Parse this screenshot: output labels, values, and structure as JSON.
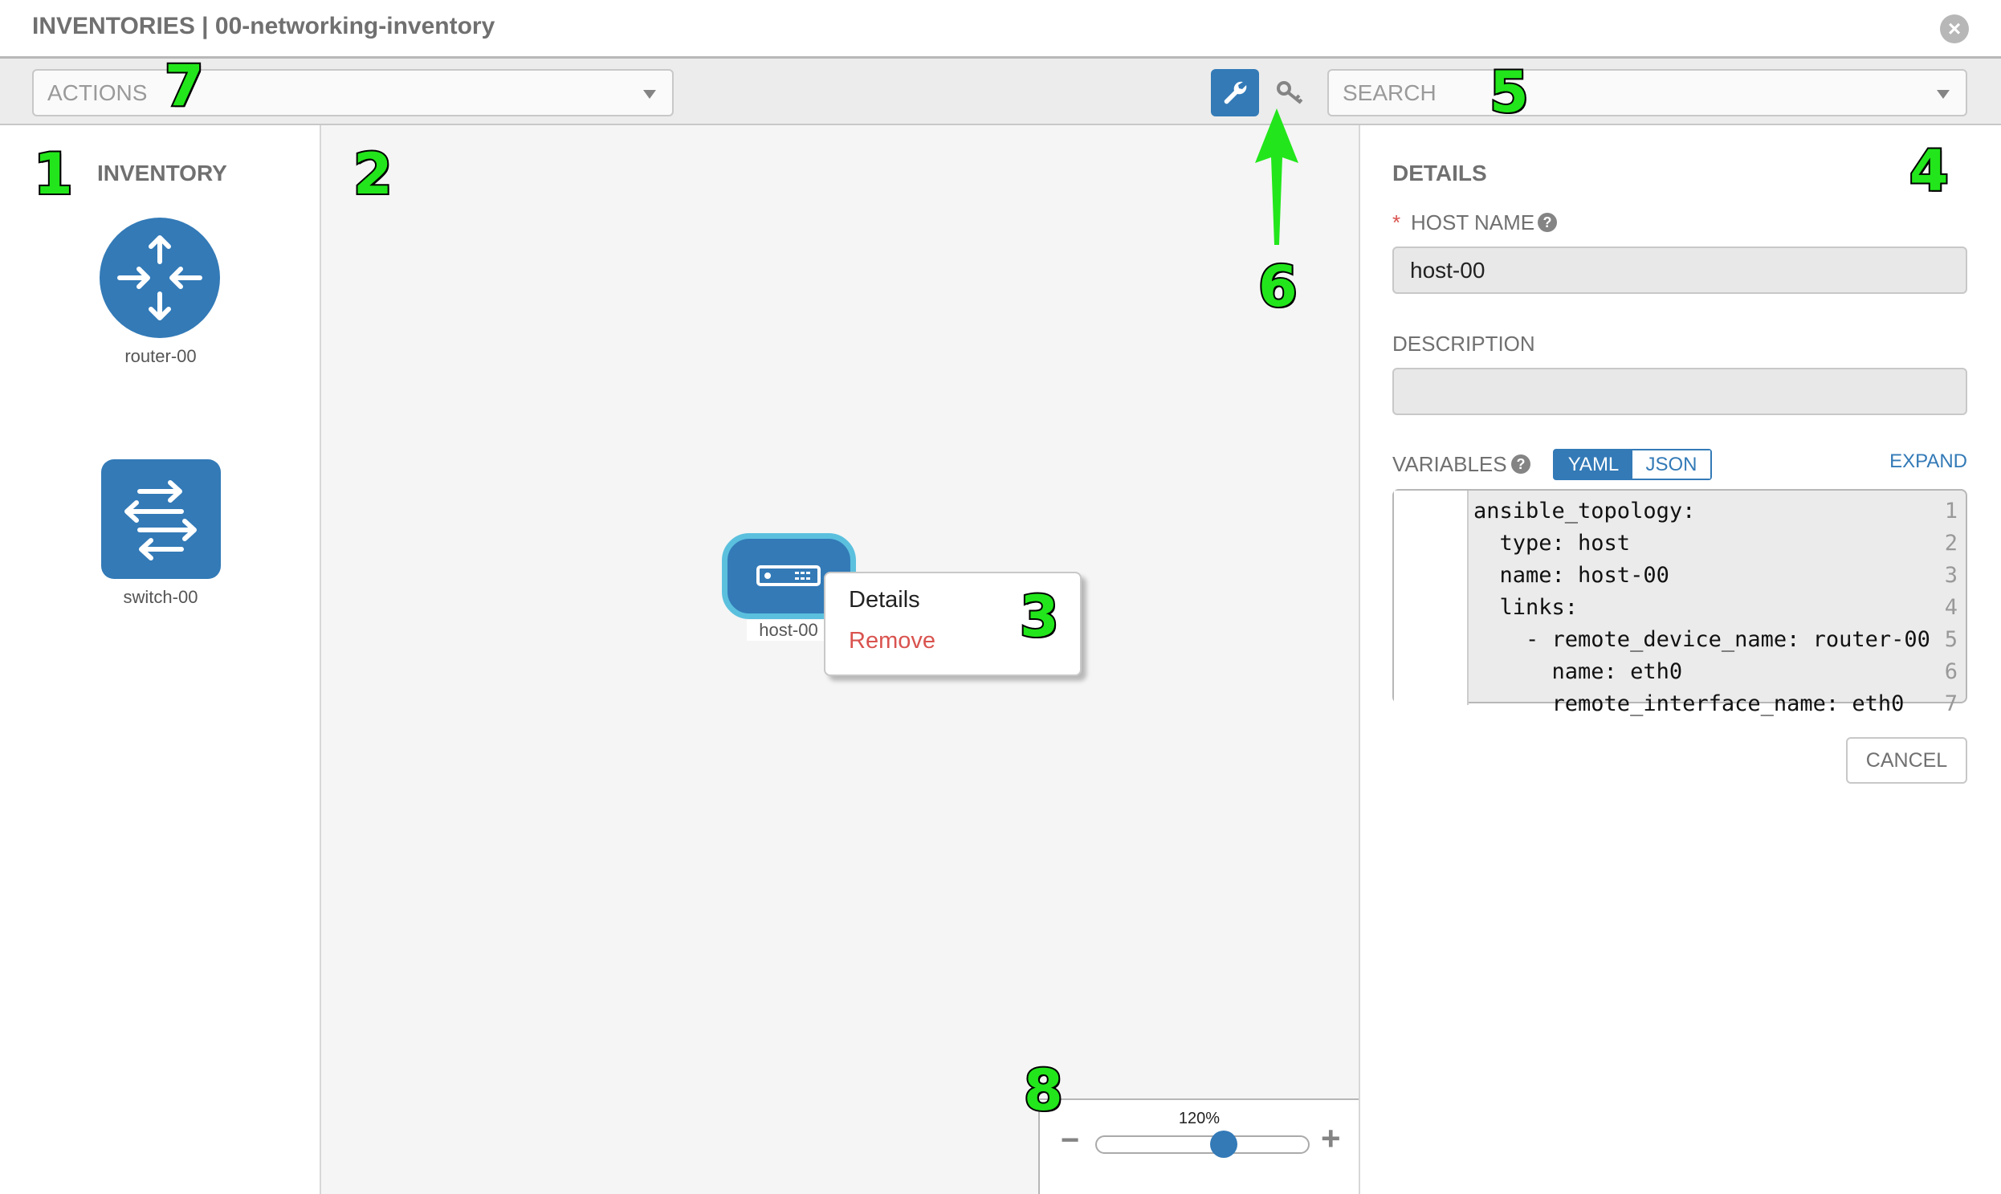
{
  "header": {
    "title": "INVENTORIES | 00-networking-inventory"
  },
  "toolbar": {
    "actions_placeholder": "ACTIONS",
    "search_placeholder": "SEARCH",
    "active_mode_icon": "wrench-icon",
    "secondary_mode_icon": "key-icon"
  },
  "inventory": {
    "heading": "INVENTORY",
    "devices": [
      {
        "label": "router-00",
        "icon": "router-icon"
      },
      {
        "label": "switch-00",
        "icon": "switch-icon"
      }
    ]
  },
  "canvas": {
    "host": {
      "label": "host-00",
      "icon": "server-icon"
    },
    "context_menu": {
      "items": [
        {
          "label": "Details"
        },
        {
          "label": "Remove",
          "color": "#d9534f"
        }
      ]
    }
  },
  "details": {
    "heading": "DETAILS",
    "host_name_label": "HOST NAME",
    "required_mark": "*",
    "host_name_value": "host-00",
    "description_label": "DESCRIPTION",
    "description_value": "",
    "variables_label": "VARIABLES",
    "yaml_label": "YAML",
    "json_label": "JSON",
    "active_format": "YAML",
    "expand_label": "EXPAND",
    "code_lines": [
      {
        "n": "1",
        "text": "ansible_topology:"
      },
      {
        "n": "2",
        "text": "  type: host"
      },
      {
        "n": "3",
        "text": "  name: host-00"
      },
      {
        "n": "4",
        "text": "  links:"
      },
      {
        "n": "5",
        "text": "    - remote_device_name: router-00"
      },
      {
        "n": "6",
        "text": "      name: eth0"
      },
      {
        "n": "7",
        "text": "      remote_interface_name: eth0"
      }
    ],
    "cancel_label": "CANCEL"
  },
  "zoom": {
    "percent": "120%",
    "slider_fraction": 0.6,
    "minus": "−",
    "plus": "+"
  },
  "annotations": [
    "1",
    "2",
    "3",
    "4",
    "5",
    "6",
    "7",
    "8"
  ],
  "colors": {
    "primary": "#337ab7",
    "selected_outline": "#5bc0de",
    "danger": "#d9534f",
    "annotation": "#22e61b"
  }
}
